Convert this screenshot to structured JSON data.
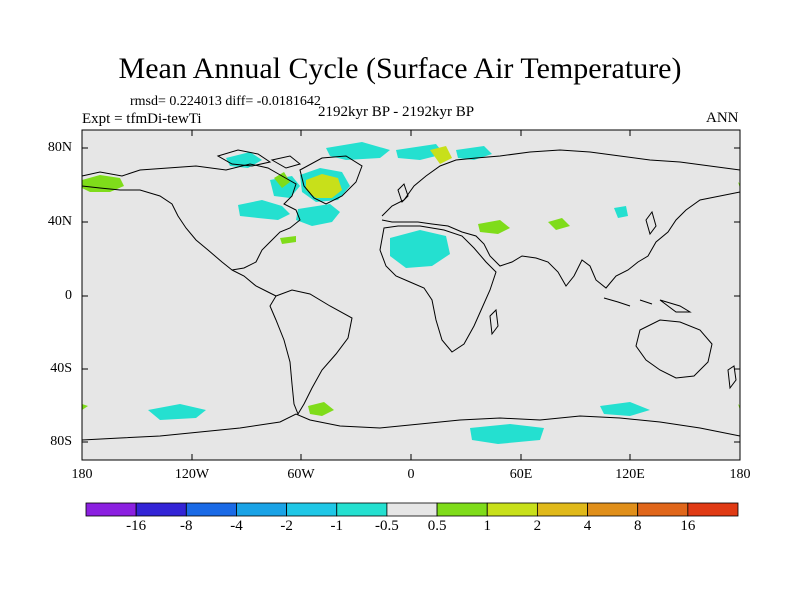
{
  "title": "Mean Annual Cycle (Surface Air Temperature)",
  "stats": "rmsd= 0.224013 diff= -0.0181642",
  "experiment": "Expt = tfmDi-tewTi",
  "period": "2192kyr BP - 2192kyr BP",
  "season": "ANN",
  "lat_labels": [
    "80N",
    "40N",
    "0",
    "40S",
    "80S"
  ],
  "lon_labels": [
    "180",
    "120W",
    "60W",
    "0",
    "60E",
    "120E",
    "180"
  ],
  "colorbar": {
    "labels": [
      "-16",
      "-8",
      "-4",
      "-2",
      "-1",
      "-0.5",
      "0.5",
      "1",
      "2",
      "4",
      "8",
      "16"
    ],
    "colors": [
      "#8b20e0",
      "#3324d6",
      "#1a6ae6",
      "#1aa3e6",
      "#1fc7e6",
      "#24e0d0",
      "#e6e6e6",
      "#7fdc1a",
      "#c8e01a",
      "#e0b91a",
      "#e08f1a",
      "#e0661a",
      "#e03a14"
    ]
  },
  "colors": {
    "background_field": "#e6e6e6",
    "coast": "#000000"
  }
}
